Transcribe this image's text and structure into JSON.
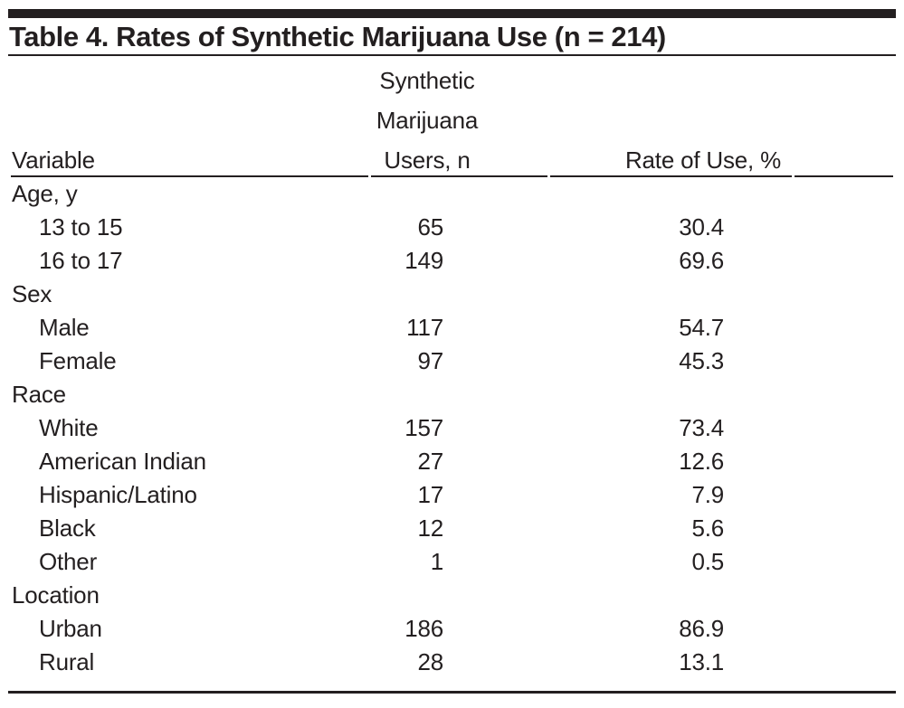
{
  "table": {
    "title": "Table 4. Rates of Synthetic Marijuana Use (n = 214)",
    "header": {
      "col1": "Variable",
      "col2_lines": [
        "Synthetic",
        "Marijuana",
        "Users, n"
      ],
      "col3": "Rate of Use, %"
    },
    "groups": [
      {
        "label": "Age, y",
        "rows": [
          {
            "label": "13 to 15",
            "n": "65",
            "rate": "30.4"
          },
          {
            "label": "16 to 17",
            "n": "149",
            "rate": "69.6"
          }
        ]
      },
      {
        "label": "Sex",
        "rows": [
          {
            "label": "Male",
            "n": "117",
            "rate": "54.7"
          },
          {
            "label": "Female",
            "n": "97",
            "rate": "45.3"
          }
        ]
      },
      {
        "label": "Race",
        "rows": [
          {
            "label": "White",
            "n": "157",
            "rate": "73.4"
          },
          {
            "label": "American Indian",
            "n": "27",
            "rate": "12.6"
          },
          {
            "label": "Hispanic/Latino",
            "n": "17",
            "rate": "7.9"
          },
          {
            "label": "Black",
            "n": "12",
            "rate": "5.6"
          },
          {
            "label": "Other",
            "n": "1",
            "rate": "0.5"
          }
        ]
      },
      {
        "label": "Location",
        "rows": [
          {
            "label": "Urban",
            "n": "186",
            "rate": "86.9"
          },
          {
            "label": "Rural",
            "n": "28",
            "rate": "13.1"
          }
        ]
      }
    ],
    "colors": {
      "text": "#231f20",
      "rule": "#231f20",
      "background": "#ffffff"
    }
  }
}
